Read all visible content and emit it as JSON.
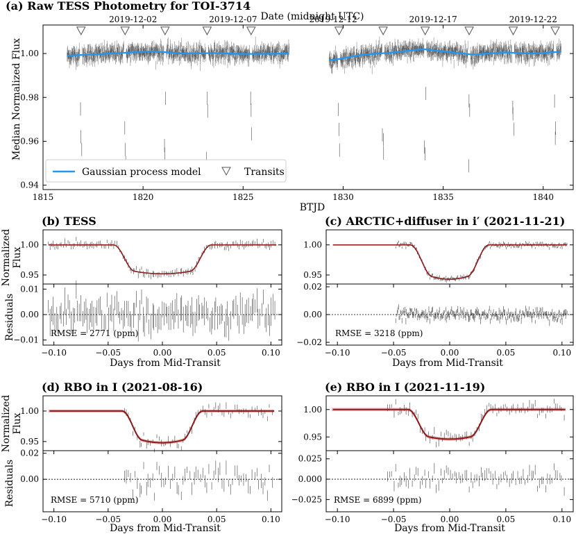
{
  "chart_data": [
    {
      "type": "scatter",
      "title": "(a) Raw TESS Photometry for TOI-3714",
      "xlabel": "BTJD",
      "ylabel": "Median Normalized Flux",
      "top_axis_label": "Date (midnight UTC)",
      "xlim": [
        1815,
        1841.5
      ],
      "ylim": [
        0.938,
        1.013
      ],
      "xticks": [
        1815,
        1820,
        1825,
        1830,
        1835,
        1840
      ],
      "xtick_labels": [
        "1815",
        "1820",
        "1825",
        "1830",
        "1835",
        "1840"
      ],
      "yticks": [
        0.94,
        0.96,
        0.98,
        1.0
      ],
      "ytick_labels": [
        "0.94",
        "0.96",
        "0.98",
        "1.00"
      ],
      "top_ticks": [
        1819.5,
        1824.5,
        1829.5,
        1834.5,
        1839.5
      ],
      "top_tick_labels": [
        "2019-12-02",
        "2019-12-07",
        "2019-12-12",
        "2019-12-17",
        "2019-12-22"
      ],
      "segments": [
        [
          1816.2,
          1827.3
        ],
        [
          1829.3,
          1840.9
        ]
      ],
      "gp_model": {
        "x": [
          1816.2,
          1817.5,
          1819,
          1820.5,
          1822,
          1823.5,
          1825,
          1826.5,
          1827.3,
          1829.3,
          1829.8,
          1831,
          1832.5,
          1834,
          1835,
          1836.5,
          1838,
          1839.5,
          1840.9
        ],
        "y": [
          0.999,
          0.9996,
          1.0003,
          1.001,
          1.0,
          1.0002,
          0.9998,
          0.9999,
          1.0,
          0.997,
          0.9975,
          0.9995,
          1.0005,
          1.002,
          1.001,
          0.9995,
          1.0005,
          1.0,
          1.0008
        ]
      },
      "transits": [
        1816.9,
        1819.1,
        1821.1,
        1823.2,
        1825.4,
        1829.8,
        1832.0,
        1834.1,
        1836.3,
        1838.5,
        1840.6
      ],
      "legend": [
        {
          "label": "Gaussian process model",
          "marker": "line",
          "color": "#2196f3"
        },
        {
          "label": "Transits",
          "marker": "open-triangle-down",
          "color": "#555555"
        }
      ],
      "legend_position": "lower-left",
      "colors": {
        "data": "#222222",
        "model": "#2196f3",
        "markers": "#555555"
      }
    },
    {
      "type": "scatter",
      "title": "(b) TESS",
      "xlabel": "Days from Mid-Transit",
      "xlim": [
        -0.11,
        0.11
      ],
      "xticks": [
        -0.1,
        -0.05,
        0.0,
        0.05,
        0.1
      ],
      "xtick_labels": [
        "−0.10",
        "−0.05",
        "0.00",
        "0.05",
        "0.10"
      ],
      "flux_ylabel": "Normalized Flux",
      "flux_ylim": [
        0.935,
        1.025
      ],
      "flux_yticks": [
        0.95,
        1.0
      ],
      "flux_ytick_labels": [
        "0.95",
        "1.00"
      ],
      "resid_ylabel": "Residuals",
      "resid_ylim": [
        -0.012,
        0.012
      ],
      "resid_yticks": [
        -0.01,
        0.0,
        0.01
      ],
      "resid_ytick_labels": [
        "−0.01",
        "0.00",
        "0.01"
      ],
      "data_range": [
        -0.105,
        0.105
      ],
      "depth": 0.044,
      "ingress": [
        -0.045,
        -0.025
      ],
      "egress": [
        0.025,
        0.045
      ],
      "rmse_label": "RMSE = 2771 (ppm)",
      "rmse_ppm": 2771,
      "colors": {
        "data": "#222222",
        "model": "#8b1a1a"
      }
    },
    {
      "type": "scatter",
      "title": "(c) ARCTIC+diffuser in i′ (2021-11-21)",
      "xlabel": "Days from Mid-Transit",
      "xlim": [
        -0.11,
        0.11
      ],
      "xticks": [
        -0.1,
        -0.05,
        0.0,
        0.05,
        0.1
      ],
      "xtick_labels": [
        "−0.10",
        "−0.05",
        "0.00",
        "0.05",
        "0.10"
      ],
      "flux_ylabel": "Normalized Flux",
      "flux_ylim": [
        0.935,
        1.025
      ],
      "flux_yticks": [
        0.95,
        1.0
      ],
      "flux_ytick_labels": [
        "0.95",
        "1.00"
      ],
      "resid_ylabel": "Residuals",
      "resid_ylim": [
        -0.022,
        0.022
      ],
      "resid_yticks": [
        -0.02,
        0.0,
        0.02
      ],
      "resid_ytick_labels": [
        "−0.02",
        "0.00",
        "0.02"
      ],
      "data_range": [
        -0.048,
        0.105
      ],
      "depth": 0.053,
      "ingress": [
        -0.035,
        -0.015
      ],
      "egress": [
        0.015,
        0.035
      ],
      "rmse_label": "RMSE = 3218 (ppm)",
      "rmse_ppm": 3218,
      "colors": {
        "data": "#222222",
        "model": "#8b1a1a"
      }
    },
    {
      "type": "scatter",
      "title": "(d) RBO in I (2021-08-16)",
      "xlabel": "Days from Mid-Transit",
      "xlim": [
        -0.11,
        0.11
      ],
      "xticks": [
        -0.1,
        -0.05,
        0.0,
        0.05,
        0.1
      ],
      "xtick_labels": [
        "−0.10",
        "−0.05",
        "0.00",
        "0.05",
        "0.10"
      ],
      "flux_ylabel": "Normalized Flux",
      "flux_ylim": [
        0.935,
        1.025
      ],
      "flux_yticks": [
        0.95,
        1.0
      ],
      "flux_ytick_labels": [
        "0.95",
        "1.00"
      ],
      "resid_ylabel": "Residuals",
      "resid_ylim": [
        -0.025,
        0.022
      ],
      "resid_yticks": [
        0.0,
        0.02
      ],
      "resid_ytick_labels": [
        "0.00",
        "0.02"
      ],
      "data_range": [
        -0.035,
        0.103
      ],
      "depth": 0.048,
      "ingress": [
        -0.037,
        -0.018
      ],
      "egress": [
        0.018,
        0.037
      ],
      "rmse_label": "RMSE = 5710 (ppm)",
      "rmse_ppm": 5710,
      "colors": {
        "data": "#222222",
        "model": "#8b1a1a"
      }
    },
    {
      "type": "scatter",
      "title": "(e) RBO in I (2021-11-19)",
      "xlabel": "Days from Mid-Transit",
      "xlim": [
        -0.11,
        0.11
      ],
      "xticks": [
        -0.1,
        -0.05,
        0.0,
        0.05,
        0.1
      ],
      "xtick_labels": [
        "−0.10",
        "−0.05",
        "0.00",
        "0.05",
        "0.10"
      ],
      "flux_ylabel": "Normalized Flux",
      "flux_ylim": [
        0.925,
        1.025
      ],
      "flux_yticks": [
        0.95,
        1.0
      ],
      "flux_ytick_labels": [
        "0.95",
        "1.00"
      ],
      "resid_ylabel": "Residuals",
      "resid_ylim": [
        -0.04,
        0.035
      ],
      "resid_yticks": [
        -0.025,
        0.0,
        0.025
      ],
      "resid_ytick_labels": [
        "−0.025",
        "0.000",
        "0.025"
      ],
      "data_range": [
        -0.055,
        0.103
      ],
      "depth": 0.05,
      "ingress": [
        -0.037,
        -0.018
      ],
      "egress": [
        0.018,
        0.037
      ],
      "rmse_label": "RMSE = 6899 (ppm)",
      "rmse_ppm": 6899,
      "colors": {
        "data": "#222222",
        "model": "#8b1a1a"
      }
    }
  ]
}
